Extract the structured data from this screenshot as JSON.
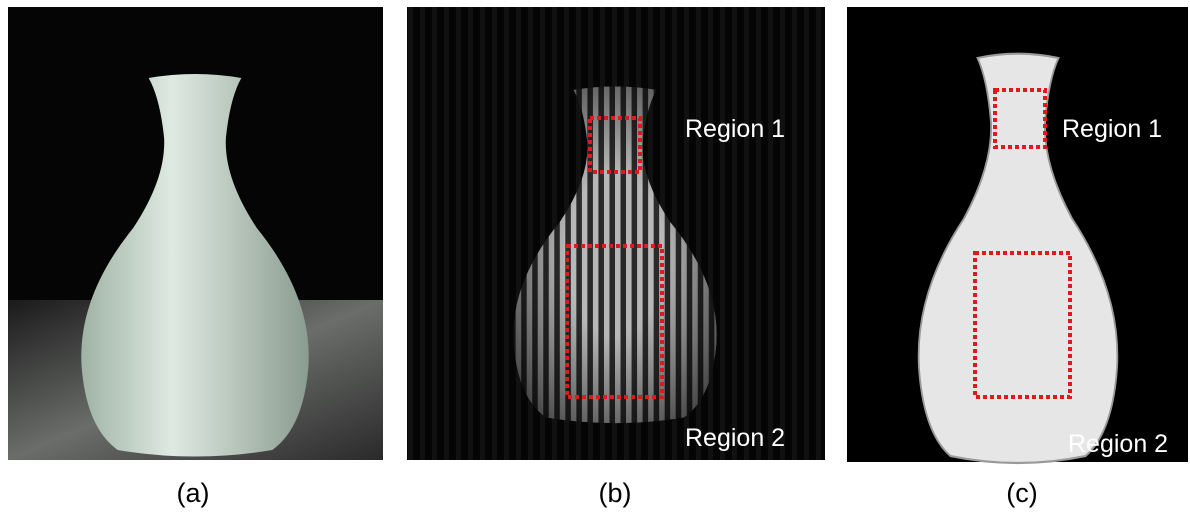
{
  "panels": [
    {
      "label": "(a)"
    },
    {
      "label": "(b)",
      "regions": [
        "Region 1",
        "Region 2"
      ]
    },
    {
      "label": "(c)",
      "regions": [
        "Region 1",
        "Region 2"
      ]
    }
  ]
}
